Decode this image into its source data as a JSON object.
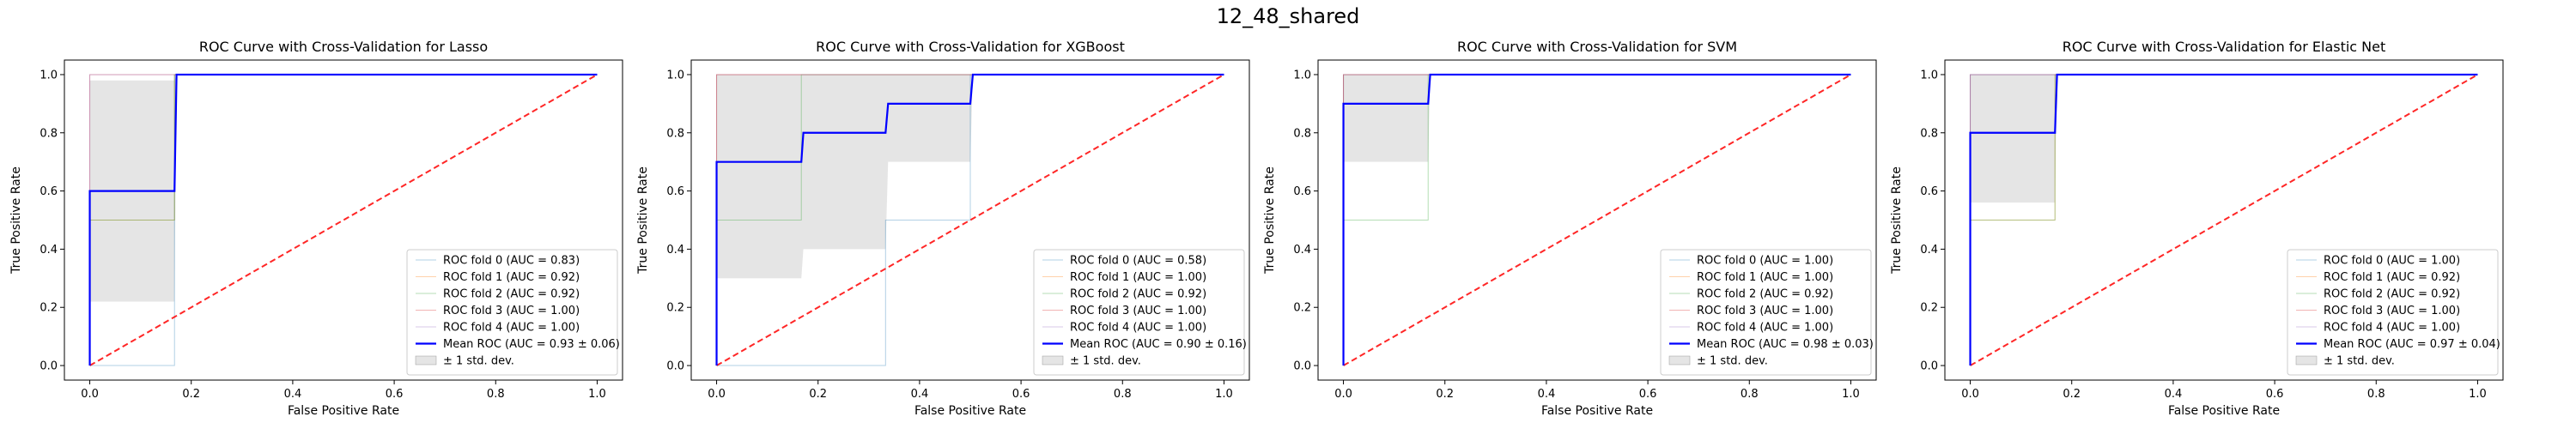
{
  "figure": {
    "suptitle": "12_48_shared"
  },
  "chart_data": [
    {
      "type": "line",
      "title": "ROC Curve with Cross-Validation for Lasso",
      "xlabel": "False Positive Rate",
      "ylabel": "True Positive Rate",
      "xlim": [
        -0.05,
        1.05
      ],
      "ylim": [
        -0.05,
        1.05
      ],
      "xticks": [
        "0.0",
        "0.2",
        "0.4",
        "0.6",
        "0.8",
        "1.0"
      ],
      "yticks": [
        "0.0",
        "0.2",
        "0.4",
        "0.6",
        "0.8",
        "1.0"
      ],
      "legend_position": "lower right",
      "folds": [
        {
          "name": "ROC fold 0 (AUC = 0.83)",
          "color": "#1f77b4",
          "x": [
            0,
            0,
            0.167,
            0.167,
            1
          ],
          "y": [
            0,
            0,
            0,
            1,
            1
          ]
        },
        {
          "name": "ROC fold 1 (AUC = 0.92)",
          "color": "#ff7f0e",
          "x": [
            0,
            0,
            0.167,
            0.167,
            1
          ],
          "y": [
            0,
            0.5,
            0.5,
            1,
            1
          ]
        },
        {
          "name": "ROC fold 2 (AUC = 0.92)",
          "color": "#2ca02c",
          "x": [
            0,
            0,
            0.167,
            0.167,
            1
          ],
          "y": [
            0,
            0.5,
            0.5,
            1,
            1
          ]
        },
        {
          "name": "ROC fold 3 (AUC = 1.00)",
          "color": "#d62728",
          "x": [
            0,
            0,
            1
          ],
          "y": [
            0,
            1,
            1
          ]
        },
        {
          "name": "ROC fold 4 (AUC = 1.00)",
          "color": "#9467bd",
          "x": [
            0,
            0,
            1
          ],
          "y": [
            0,
            1,
            1
          ]
        }
      ],
      "mean": {
        "name": "Mean ROC (AUC = 0.93 ± 0.06)",
        "color": "#0000ff",
        "x": [
          0,
          0,
          0.167,
          0.171,
          1
        ],
        "y": [
          0,
          0.6,
          0.6,
          1,
          1
        ]
      },
      "band": {
        "name": "± 1 std. dev.",
        "color": "#bdbdbd",
        "x": [
          0,
          0.167,
          0.171,
          1
        ],
        "upper": [
          0.98,
          0.98,
          1,
          1
        ],
        "lower": [
          0.22,
          0.22,
          1,
          1
        ]
      },
      "chance": {
        "color": "#ff0000",
        "x": [
          0,
          1
        ],
        "y": [
          0,
          1
        ]
      }
    },
    {
      "type": "line",
      "title": "ROC Curve with Cross-Validation for XGBoost",
      "xlabel": "False Positive Rate",
      "ylabel": "True Positive Rate",
      "xlim": [
        -0.05,
        1.05
      ],
      "ylim": [
        -0.05,
        1.05
      ],
      "xticks": [
        "0.0",
        "0.2",
        "0.4",
        "0.6",
        "0.8",
        "1.0"
      ],
      "yticks": [
        "0.0",
        "0.2",
        "0.4",
        "0.6",
        "0.8",
        "1.0"
      ],
      "legend_position": "lower right",
      "folds": [
        {
          "name": "ROC fold 0 (AUC = 0.58)",
          "color": "#1f77b4",
          "x": [
            0,
            0.333,
            0.333,
            0.5,
            0.5,
            1
          ],
          "y": [
            0,
            0,
            0.5,
            0.5,
            1,
            1
          ]
        },
        {
          "name": "ROC fold 1 (AUC = 1.00)",
          "color": "#ff7f0e",
          "x": [
            0,
            0,
            1
          ],
          "y": [
            0,
            1,
            1
          ]
        },
        {
          "name": "ROC fold 2 (AUC = 0.92)",
          "color": "#2ca02c",
          "x": [
            0,
            0,
            0.167,
            0.167,
            1
          ],
          "y": [
            0,
            0.5,
            0.5,
            1,
            1
          ]
        },
        {
          "name": "ROC fold 3 (AUC = 1.00)",
          "color": "#d62728",
          "x": [
            0,
            0,
            1
          ],
          "y": [
            0,
            1,
            1
          ]
        },
        {
          "name": "ROC fold 4 (AUC = 1.00)",
          "color": "#9467bd",
          "x": [
            0,
            0,
            1
          ],
          "y": [
            0,
            1,
            1
          ]
        }
      ],
      "mean": {
        "name": "Mean ROC (AUC = 0.90 ± 0.16)",
        "color": "#0000ff",
        "x": [
          0,
          0,
          0.167,
          0.171,
          0.333,
          0.338,
          0.5,
          0.505,
          1
        ],
        "y": [
          0,
          0.7,
          0.7,
          0.8,
          0.8,
          0.9,
          0.9,
          1,
          1
        ]
      },
      "band": {
        "name": "± 1 std. dev.",
        "color": "#bdbdbd",
        "x": [
          0,
          0.167,
          0.171,
          0.333,
          0.338,
          0.5,
          0.505,
          1
        ],
        "upper": [
          1,
          1,
          1,
          1,
          1,
          1,
          1,
          1
        ],
        "lower": [
          0.3,
          0.3,
          0.4,
          0.4,
          0.7,
          0.7,
          1,
          1
        ]
      },
      "chance": {
        "color": "#ff0000",
        "x": [
          0,
          1
        ],
        "y": [
          0,
          1
        ]
      }
    },
    {
      "type": "line",
      "title": "ROC Curve with Cross-Validation for SVM",
      "xlabel": "False Positive Rate",
      "ylabel": "True Positive Rate",
      "xlim": [
        -0.05,
        1.05
      ],
      "ylim": [
        -0.05,
        1.05
      ],
      "xticks": [
        "0.0",
        "0.2",
        "0.4",
        "0.6",
        "0.8",
        "1.0"
      ],
      "yticks": [
        "0.0",
        "0.2",
        "0.4",
        "0.6",
        "0.8",
        "1.0"
      ],
      "legend_position": "lower right",
      "folds": [
        {
          "name": "ROC fold 0 (AUC = 1.00)",
          "color": "#1f77b4",
          "x": [
            0,
            0,
            1
          ],
          "y": [
            0,
            1,
            1
          ]
        },
        {
          "name": "ROC fold 1 (AUC = 1.00)",
          "color": "#ff7f0e",
          "x": [
            0,
            0,
            1
          ],
          "y": [
            0,
            1,
            1
          ]
        },
        {
          "name": "ROC fold 2 (AUC = 0.92)",
          "color": "#2ca02c",
          "x": [
            0,
            0,
            0.167,
            0.167,
            1
          ],
          "y": [
            0,
            0.5,
            0.5,
            1,
            1
          ]
        },
        {
          "name": "ROC fold 3 (AUC = 1.00)",
          "color": "#d62728",
          "x": [
            0,
            0,
            1
          ],
          "y": [
            0,
            1,
            1
          ]
        },
        {
          "name": "ROC fold 4 (AUC = 1.00)",
          "color": "#9467bd",
          "x": [
            0,
            0,
            1
          ],
          "y": [
            0,
            1,
            1
          ]
        }
      ],
      "mean": {
        "name": "Mean ROC (AUC = 0.98 ± 0.03)",
        "color": "#0000ff",
        "x": [
          0,
          0,
          0.167,
          0.171,
          1
        ],
        "y": [
          0,
          0.9,
          0.9,
          1,
          1
        ]
      },
      "band": {
        "name": "± 1 std. dev.",
        "color": "#bdbdbd",
        "x": [
          0,
          0.167,
          0.171,
          1
        ],
        "upper": [
          1,
          1,
          1,
          1
        ],
        "lower": [
          0.7,
          0.7,
          1,
          1
        ]
      },
      "chance": {
        "color": "#ff0000",
        "x": [
          0,
          1
        ],
        "y": [
          0,
          1
        ]
      }
    },
    {
      "type": "line",
      "title": "ROC Curve with Cross-Validation for Elastic Net",
      "xlabel": "False Positive Rate",
      "ylabel": "True Positive Rate",
      "xlim": [
        -0.05,
        1.05
      ],
      "ylim": [
        -0.05,
        1.05
      ],
      "xticks": [
        "0.0",
        "0.2",
        "0.4",
        "0.6",
        "0.8",
        "1.0"
      ],
      "yticks": [
        "0.0",
        "0.2",
        "0.4",
        "0.6",
        "0.8",
        "1.0"
      ],
      "legend_position": "lower right",
      "folds": [
        {
          "name": "ROC fold 0 (AUC = 1.00)",
          "color": "#1f77b4",
          "x": [
            0,
            0,
            1
          ],
          "y": [
            0,
            1,
            1
          ]
        },
        {
          "name": "ROC fold 1 (AUC = 0.92)",
          "color": "#ff7f0e",
          "x": [
            0,
            0,
            0.167,
            0.167,
            1
          ],
          "y": [
            0,
            0.5,
            0.5,
            1,
            1
          ]
        },
        {
          "name": "ROC fold 2 (AUC = 0.92)",
          "color": "#2ca02c",
          "x": [
            0,
            0,
            0.167,
            0.167,
            1
          ],
          "y": [
            0,
            0.5,
            0.5,
            1,
            1
          ]
        },
        {
          "name": "ROC fold 3 (AUC = 1.00)",
          "color": "#d62728",
          "x": [
            0,
            0,
            1
          ],
          "y": [
            0,
            1,
            1
          ]
        },
        {
          "name": "ROC fold 4 (AUC = 1.00)",
          "color": "#9467bd",
          "x": [
            0,
            0,
            1
          ],
          "y": [
            0,
            1,
            1
          ]
        }
      ],
      "mean": {
        "name": "Mean ROC (AUC = 0.97 ± 0.04)",
        "color": "#0000ff",
        "x": [
          0,
          0,
          0.167,
          0.171,
          1
        ],
        "y": [
          0,
          0.8,
          0.8,
          1,
          1
        ]
      },
      "band": {
        "name": "± 1 std. dev.",
        "color": "#bdbdbd",
        "x": [
          0,
          0.167,
          0.171,
          1
        ],
        "upper": [
          1,
          1,
          1,
          1
        ],
        "lower": [
          0.56,
          0.56,
          1,
          1
        ]
      },
      "chance": {
        "color": "#ff0000",
        "x": [
          0,
          1
        ],
        "y": [
          0,
          1
        ]
      }
    }
  ]
}
